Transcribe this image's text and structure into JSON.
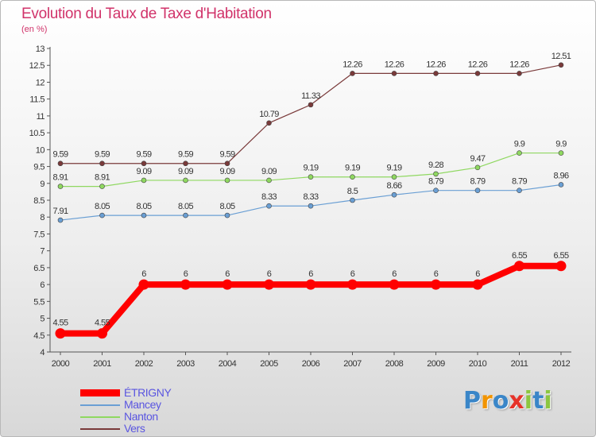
{
  "title": "Evolution du Taux de Taxe d'Habitation",
  "subtitle": "(en %)",
  "logo": {
    "text": "Proxiti",
    "colors": [
      "#3a86c8",
      "#f29400",
      "#3a86c8",
      "#e6332a",
      "#8cc63f",
      "#3a86c8",
      "#8cc63f"
    ]
  },
  "chart_data": {
    "type": "line",
    "title": "Evolution du Taux de Taxe d'Habitation",
    "ylabel": "(en %)",
    "xlabel": "",
    "ylim": [
      4,
      13
    ],
    "yticks": [
      "4",
      "4.5",
      "5",
      "5.5",
      "6",
      "6.5",
      "7",
      "7.5",
      "8",
      "8.5",
      "9",
      "9.5",
      "10",
      "10.5",
      "11",
      "11.5",
      "12",
      "12.5",
      "13"
    ],
    "grid": false,
    "legend_position": "bottom-left",
    "x": [
      "2000",
      "2001",
      "2002",
      "2003",
      "2004",
      "2005",
      "2006",
      "2007",
      "2008",
      "2009",
      "2010",
      "2011",
      "2012"
    ],
    "series": [
      {
        "name": "ÉTRIGNY",
        "color": "#ff0000",
        "text_color": "#5a55e0",
        "thick": true,
        "values": [
          4.55,
          4.55,
          6,
          6,
          6,
          6,
          6,
          6,
          6,
          6,
          6,
          6.55,
          6.55
        ],
        "labels": [
          "4.55",
          "4.55",
          "6",
          "6",
          "6",
          "6",
          "6",
          "6",
          "6",
          "6",
          "6",
          "6.55",
          "6.55"
        ]
      },
      {
        "name": "Mancey",
        "color": "#6a9fd4",
        "text_color": "#5a55e0",
        "thick": false,
        "values": [
          7.91,
          8.05,
          8.05,
          8.05,
          8.05,
          8.33,
          8.33,
          8.5,
          8.66,
          8.79,
          8.79,
          8.79,
          8.96
        ],
        "labels": [
          "7.91",
          "8.05",
          "8.05",
          "8.05",
          "8.05",
          "8.33",
          "8.33",
          "8.5",
          "8.66",
          "8.79",
          "8.79",
          "8.79",
          "8.96"
        ]
      },
      {
        "name": "Nanton",
        "color": "#8fd860",
        "text_color": "#5a55e0",
        "thick": false,
        "values": [
          8.91,
          8.91,
          9.09,
          9.09,
          9.09,
          9.09,
          9.19,
          9.19,
          9.19,
          9.28,
          9.47,
          9.9,
          9.9
        ],
        "labels": [
          "8.91",
          "8.91",
          "9.09",
          "9.09",
          "9.09",
          "9.09",
          "9.19",
          "9.19",
          "9.19",
          "9.28",
          "9.47",
          "9.9",
          "9.9"
        ]
      },
      {
        "name": "Vers",
        "color": "#7a3a3a",
        "text_color": "#5a55e0",
        "thick": false,
        "values": [
          9.59,
          9.59,
          9.59,
          9.59,
          9.59,
          10.79,
          11.33,
          12.26,
          12.26,
          12.26,
          12.26,
          12.26,
          12.51
        ],
        "labels": [
          "9.59",
          "9.59",
          "9.59",
          "9.59",
          "9.59",
          "10.79",
          "11.33",
          "12.26",
          "12.26",
          "12.26",
          "12.26",
          "12.26",
          "12.51"
        ]
      }
    ]
  }
}
